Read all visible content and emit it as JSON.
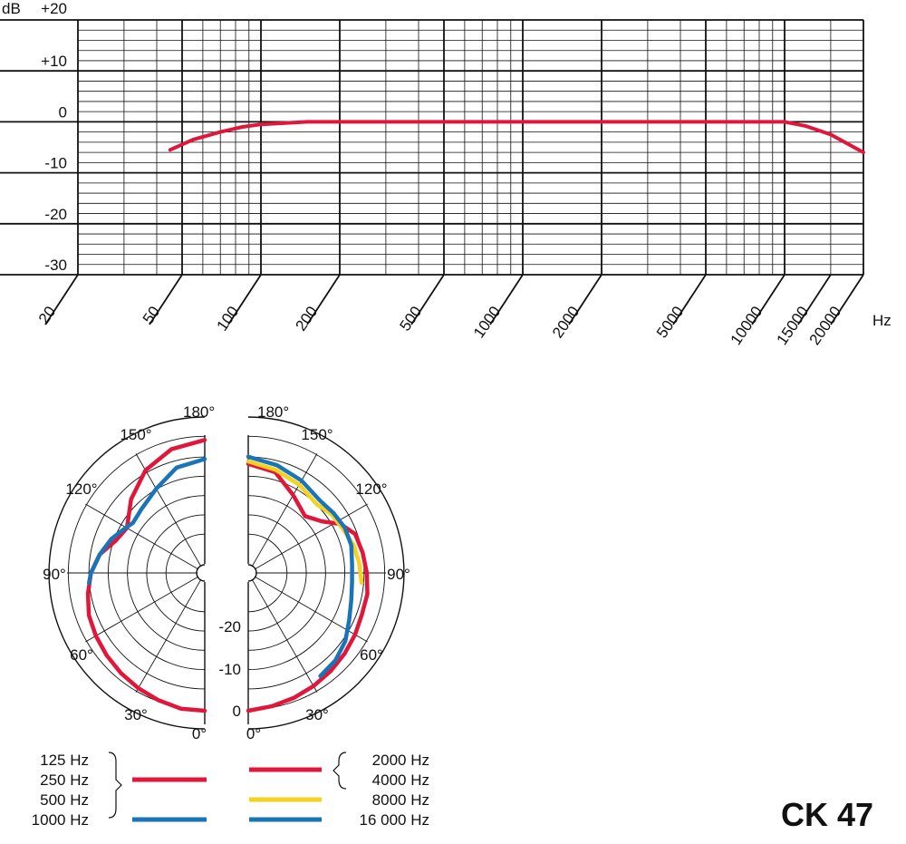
{
  "product_model": "CK 47",
  "chart_data": [
    {
      "type": "line",
      "xlabel": "Hz",
      "ylabel": "dB",
      "xscale": "log",
      "xlim": [
        20,
        20000
      ],
      "ylim": [
        -30,
        20
      ],
      "x_ticks": [
        20,
        50,
        100,
        200,
        500,
        1000,
        2000,
        5000,
        10000,
        15000,
        20000
      ],
      "x_tick_labels": [
        "20",
        "50",
        "100",
        "200",
        "500",
        "1000",
        "2000",
        "5000",
        "10000",
        "15000",
        "20000"
      ],
      "y_ticks": [
        20,
        10,
        0,
        -10,
        -20,
        -30
      ],
      "y_tick_labels": [
        "+20",
        "+10",
        "0",
        "-10",
        "-20",
        "-30"
      ],
      "grid": true,
      "series": [
        {
          "color": "#e0173a",
          "x": [
            45,
            55,
            70,
            85,
            100,
            150,
            200,
            500,
            1000,
            2000,
            5000,
            8000,
            10000,
            12000,
            15000,
            20000
          ],
          "y": [
            -5.5,
            -3.5,
            -2,
            -1,
            -0.5,
            0,
            0,
            0,
            0,
            0,
            0,
            0,
            0,
            -0.8,
            -2.5,
            -6
          ]
        }
      ]
    },
    {
      "type": "polar",
      "angle_labels_left": [
        "180°",
        "150°",
        "120°",
        "90°",
        "60°",
        "30°",
        "0°"
      ],
      "angle_labels_right": [
        "180°",
        "150°",
        "120°",
        "90°",
        "60°",
        "30°",
        "0°"
      ],
      "radial_labels": [
        "-20",
        "-10",
        "0"
      ],
      "legend": {
        "left": [
          {
            "labels": [
              "125 Hz",
              "250 Hz",
              "500 Hz"
            ],
            "color": "#e0173a"
          },
          {
            "labels": [
              "1000 Hz"
            ],
            "color": "#1a74b8"
          }
        ],
        "right": [
          {
            "labels": [
              "2000 Hz",
              "4000 Hz"
            ],
            "color": "#e0173a"
          },
          {
            "labels": [
              "8000 Hz"
            ],
            "color": "#f4d21f"
          },
          {
            "labels": [
              "16 000 Hz"
            ],
            "color": "#1a74b8"
          }
        ]
      },
      "series": [
        {
          "side": "left",
          "frequencies": "125 Hz, 250 Hz, 500 Hz",
          "color": "#e0173a",
          "angles": [
            0,
            10,
            20,
            30,
            40,
            50,
            60,
            70,
            80,
            90,
            100,
            110,
            120,
            135,
            150,
            165,
            180
          ],
          "db": [
            0,
            0,
            -0.5,
            -1,
            -1.5,
            -2,
            -2.5,
            -3,
            -4,
            -5,
            -6.5,
            -9,
            -10,
            -7,
            -4,
            -2,
            -1
          ]
        },
        {
          "side": "left",
          "frequencies": "1000 Hz",
          "color": "#1a74b8",
          "angles": [
            85,
            90,
            100,
            110,
            118,
            125,
            135,
            150,
            165,
            180
          ],
          "db": [
            -4.5,
            -5,
            -6.5,
            -8,
            -9.5,
            -10.5,
            -10,
            -8.5,
            -6,
            -5
          ]
        },
        {
          "side": "right",
          "frequencies": "2000 Hz, 4000 Hz",
          "color": "#e0173a",
          "angles": [
            0,
            10,
            20,
            30,
            40,
            50,
            60,
            70,
            80,
            90,
            100,
            110,
            118,
            125,
            135,
            150,
            165,
            180
          ],
          "db": [
            0,
            -0.5,
            -1,
            -1.5,
            -2,
            -2.5,
            -3,
            -3.5,
            -3.5,
            -4,
            -4.5,
            -5,
            -7,
            -10,
            -12,
            -10,
            -7,
            -6
          ]
        },
        {
          "side": "right",
          "frequencies": "8000 Hz",
          "color": "#f4d21f",
          "angles": [
            85,
            95,
            105,
            115,
            125,
            135,
            150,
            165,
            180
          ],
          "db": [
            -5,
            -5.5,
            -6,
            -7,
            -7.5,
            -8.5,
            -7.5,
            -6.5,
            -5.5
          ]
        },
        {
          "side": "right",
          "frequencies": "16 000 Hz",
          "color": "#1a74b8",
          "angles": [
            35,
            45,
            55,
            65,
            75,
            85,
            95,
            105,
            115,
            125,
            135,
            150,
            165,
            180
          ],
          "db": [
            -2.5,
            -3,
            -4,
            -5.5,
            -6.5,
            -7,
            -7,
            -6.5,
            -6.5,
            -7,
            -7.5,
            -6.5,
            -5.5,
            -4.5
          ]
        }
      ]
    }
  ]
}
